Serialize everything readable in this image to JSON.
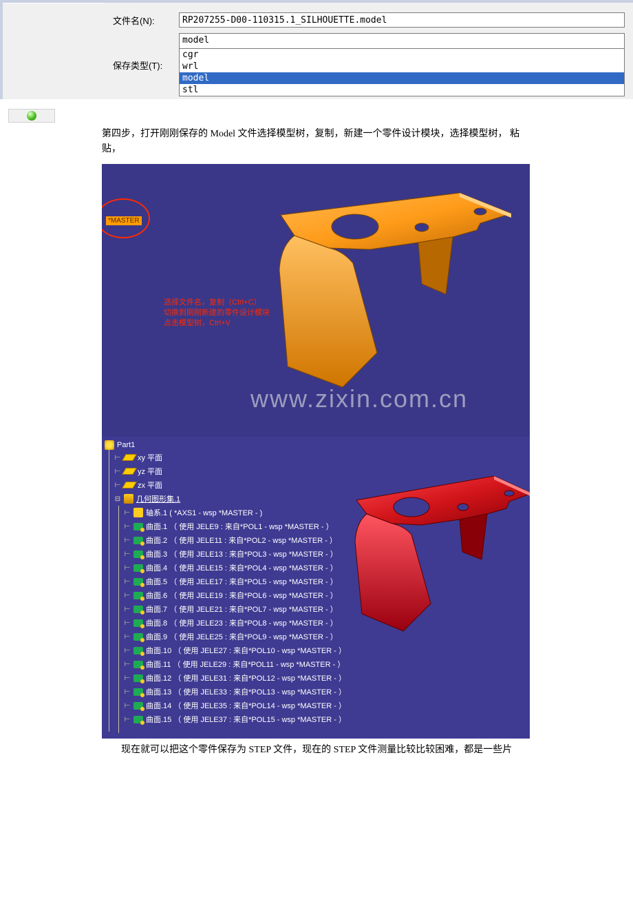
{
  "save_dialog": {
    "filename_label": "文件名(N):",
    "filename_value": "RP207255-D00-110315.1_SILHOUETTE.model",
    "type_label": "保存类型(T):",
    "type_selected": "model",
    "type_options": [
      "cgr",
      "wrl",
      "model",
      "stl"
    ],
    "highlighted_option": "model"
  },
  "para1": "第四步，打开刚刚保存的 Model 文件选择模型树，复制，新建一个零件设计模块，选择模型树， 粘贴，",
  "shot1": {
    "bg_color": "#3a3788",
    "master_label": "*MASTER",
    "red_text_lines": [
      "选择文件名，复制（Ctrl+C）",
      "切换到刚刚新建的零件设计模块",
      "点击模型树，Ctrl+V"
    ],
    "bracket_color": "#ff9c1a",
    "watermark": "www.zixin.com.cn"
  },
  "shot2": {
    "bg_color": "#3f3b92",
    "root": "Part1",
    "planes": [
      "xy 平面",
      "yz 平面",
      "zx 平面"
    ],
    "geom_set": "几何图形集.1",
    "axis": "轴系.1 ( *AXS1 - wsp *MASTER -  )",
    "surfaces": [
      "曲面.1 （ 使用 JELE9 : 来自*POL1 - wsp *MASTER -  ）",
      "曲面.2 （ 使用 JELE11 : 来自*POL2 - wsp *MASTER -  ）",
      "曲面.3 （ 使用 JELE13 : 来自*POL3 - wsp *MASTER -  ）",
      "曲面.4 （ 使用 JELE15 : 来自*POL4 - wsp *MASTER -  ）",
      "曲面.5 （ 使用 JELE17 : 来自*POL5 - wsp *MASTER -  ）",
      "曲面.6 （ 使用 JELE19 : 来自*POL6 - wsp *MASTER -  ）",
      "曲面.7 （ 使用 JELE21 : 来自*POL7 - wsp *MASTER -  ）",
      "曲面.8 （ 使用 JELE23 : 来自*POL8 - wsp *MASTER -  ）",
      "曲面.9 （ 使用 JELE25 : 来自*POL9 - wsp *MASTER -  ）",
      "曲面.10 （ 使用 JELE27 : 来自*POL10 - wsp *MASTER -  ）",
      "曲面.11 （ 使用 JELE29 : 来自*POL11 - wsp *MASTER -  ）",
      "曲面.12 （ 使用 JELE31 : 来自*POL12 - wsp *MASTER -  ）",
      "曲面.13 （ 使用 JELE33 : 来自*POL13 - wsp *MASTER -  ）",
      "曲面.14 （ 使用 JELE35 : 来自*POL14 - wsp *MASTER -  ）",
      "曲面.15 （ 使用 JELE37 : 来自*POL15 - wsp *MASTER -  ）"
    ],
    "bracket_color": "#d2151a"
  },
  "para2": "现在就可以把这个零件保存为 STEP 文件，现在的 STEP 文件测量比较比较困难，都是一些片"
}
